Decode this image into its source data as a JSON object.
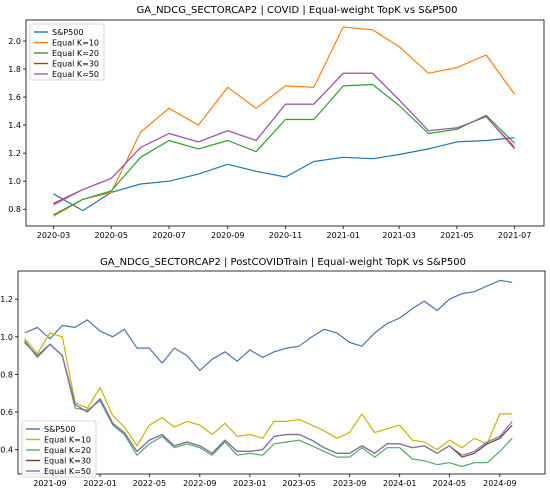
{
  "chart_data": [
    {
      "type": "line",
      "title": "GA_NDCG_SECTORCAP2 | COVID | Equal-weight TopK vs S&P500",
      "xlabel": "",
      "ylabel": "",
      "x_ticks": [
        "2020-03",
        "2020-05",
        "2020-07",
        "2020-09",
        "2020-11",
        "2021-01",
        "2021-03",
        "2021-05",
        "2021-07"
      ],
      "y_ticks": [
        "0.8",
        "1.0",
        "1.2",
        "1.4",
        "1.6",
        "1.8",
        "2.0"
      ],
      "xlim": [
        "2020-02-01",
        "2021-08-01"
      ],
      "ylim": [
        0.68,
        2.15
      ],
      "grid": false,
      "legend_position": "top-left",
      "x": [
        "2020-03-01",
        "2020-04-01",
        "2020-05-01",
        "2020-06-01",
        "2020-07-01",
        "2020-08-01",
        "2020-09-01",
        "2020-10-01",
        "2020-11-01",
        "2020-12-01",
        "2021-01-01",
        "2021-02-01",
        "2021-03-01",
        "2021-04-01",
        "2021-05-01",
        "2021-06-01",
        "2021-07-01"
      ],
      "series": [
        {
          "name": "S&P500",
          "color": "#1f77b4",
          "values": [
            0.91,
            0.79,
            0.92,
            0.98,
            1.0,
            1.05,
            1.12,
            1.07,
            1.03,
            1.14,
            1.17,
            1.16,
            1.19,
            1.23,
            1.28,
            1.29,
            1.31
          ]
        },
        {
          "name": "Equal K=10",
          "color": "#ff7f0e",
          "values": [
            0.75,
            0.87,
            0.92,
            1.35,
            1.52,
            1.4,
            1.67,
            1.52,
            1.68,
            1.67,
            2.1,
            2.08,
            1.96,
            1.77,
            1.81,
            1.9,
            1.62
          ]
        },
        {
          "name": "Equal K=20",
          "color": "#2ca02c",
          "values": [
            0.76,
            0.87,
            0.93,
            1.17,
            1.29,
            1.23,
            1.29,
            1.21,
            1.44,
            1.44,
            1.68,
            1.69,
            1.54,
            1.34,
            1.37,
            1.47,
            1.27
          ]
        },
        {
          "name": "Equal K=30",
          "color": "#d62728",
          "values": [
            0.84,
            0.94,
            1.02,
            1.24,
            1.34,
            1.28,
            1.36,
            1.29,
            1.55,
            1.55,
            1.77,
            1.77,
            1.58,
            1.36,
            1.38,
            1.46,
            1.24
          ]
        },
        {
          "name": "Equal K=50",
          "color": "#9467bd",
          "values": [
            0.83,
            0.94,
            1.02,
            1.24,
            1.34,
            1.28,
            1.36,
            1.29,
            1.55,
            1.55,
            1.77,
            1.77,
            1.58,
            1.36,
            1.38,
            1.46,
            1.23
          ]
        }
      ]
    },
    {
      "type": "line",
      "title": "GA_NDCG_SECTORCAP2 | PostCOVIDTrain | Equal-weight TopK vs S&P500",
      "xlabel": "",
      "ylabel": "",
      "x_ticks": [
        "2021-09",
        "2022-01",
        "2022-05",
        "2022-09",
        "2023-01",
        "2023-05",
        "2023-09",
        "2024-01",
        "2024-05",
        "2024-09"
      ],
      "y_ticks": [
        "0.4",
        "0.6",
        "0.8",
        "1.0",
        "1.2"
      ],
      "xlim": [
        "2021-06-15",
        "2024-12-20"
      ],
      "ylim": [
        0.27,
        1.35
      ],
      "grid": false,
      "legend_position": "bottom-left",
      "x_start": "2021-07-01",
      "x_step": "1 month",
      "series": [
        {
          "name": "S&P500",
          "color": "#4c72b0",
          "values": [
            1.02,
            1.05,
            0.99,
            1.06,
            1.05,
            1.09,
            1.03,
            1.0,
            1.04,
            0.94,
            0.94,
            0.86,
            0.94,
            0.9,
            0.82,
            0.88,
            0.92,
            0.87,
            0.93,
            0.89,
            0.92,
            0.94,
            0.95,
            1.0,
            1.04,
            1.02,
            0.97,
            0.95,
            1.02,
            1.07,
            1.1,
            1.15,
            1.19,
            1.14,
            1.2,
            1.23,
            1.24,
            1.27,
            1.3,
            1.29
          ]
        },
        {
          "name": "Equal K=10",
          "color": "#ccb400",
          "values": [
            0.99,
            0.91,
            1.02,
            1.0,
            0.65,
            0.62,
            0.73,
            0.58,
            0.52,
            0.42,
            0.53,
            0.57,
            0.52,
            0.55,
            0.53,
            0.48,
            0.54,
            0.47,
            0.48,
            0.46,
            0.55,
            0.55,
            0.56,
            0.53,
            0.5,
            0.46,
            0.49,
            0.59,
            0.49,
            0.51,
            0.53,
            0.45,
            0.44,
            0.4,
            0.45,
            0.41,
            0.46,
            0.43,
            0.59,
            0.59
          ]
        },
        {
          "name": "Equal K=20",
          "color": "#55a868",
          "values": [
            0.98,
            0.89,
            0.96,
            0.9,
            0.62,
            0.61,
            0.66,
            0.53,
            0.48,
            0.37,
            0.43,
            0.47,
            0.41,
            0.43,
            0.41,
            0.37,
            0.44,
            0.37,
            0.38,
            0.37,
            0.43,
            0.44,
            0.45,
            0.42,
            0.39,
            0.36,
            0.36,
            0.41,
            0.36,
            0.41,
            0.41,
            0.35,
            0.34,
            0.32,
            0.33,
            0.31,
            0.33,
            0.33,
            0.39,
            0.46
          ]
        },
        {
          "name": "Equal K=30",
          "color": "#5c4a2e",
          "values": [
            0.97,
            0.9,
            0.96,
            0.9,
            0.64,
            0.6,
            0.67,
            0.54,
            0.49,
            0.39,
            0.45,
            0.48,
            0.42,
            0.44,
            0.42,
            0.38,
            0.45,
            0.39,
            0.39,
            0.4,
            0.47,
            0.48,
            0.48,
            0.45,
            0.41,
            0.38,
            0.38,
            0.42,
            0.38,
            0.43,
            0.43,
            0.41,
            0.42,
            0.38,
            0.42,
            0.36,
            0.38,
            0.43,
            0.46,
            0.53
          ]
        },
        {
          "name": "Equal K=50",
          "color": "#8172b2",
          "values": [
            0.97,
            0.9,
            0.96,
            0.9,
            0.64,
            0.6,
            0.67,
            0.54,
            0.49,
            0.39,
            0.45,
            0.48,
            0.42,
            0.44,
            0.42,
            0.38,
            0.45,
            0.39,
            0.39,
            0.4,
            0.47,
            0.48,
            0.48,
            0.45,
            0.41,
            0.38,
            0.38,
            0.42,
            0.38,
            0.43,
            0.43,
            0.41,
            0.42,
            0.38,
            0.42,
            0.37,
            0.39,
            0.44,
            0.47,
            0.55
          ]
        }
      ]
    }
  ]
}
